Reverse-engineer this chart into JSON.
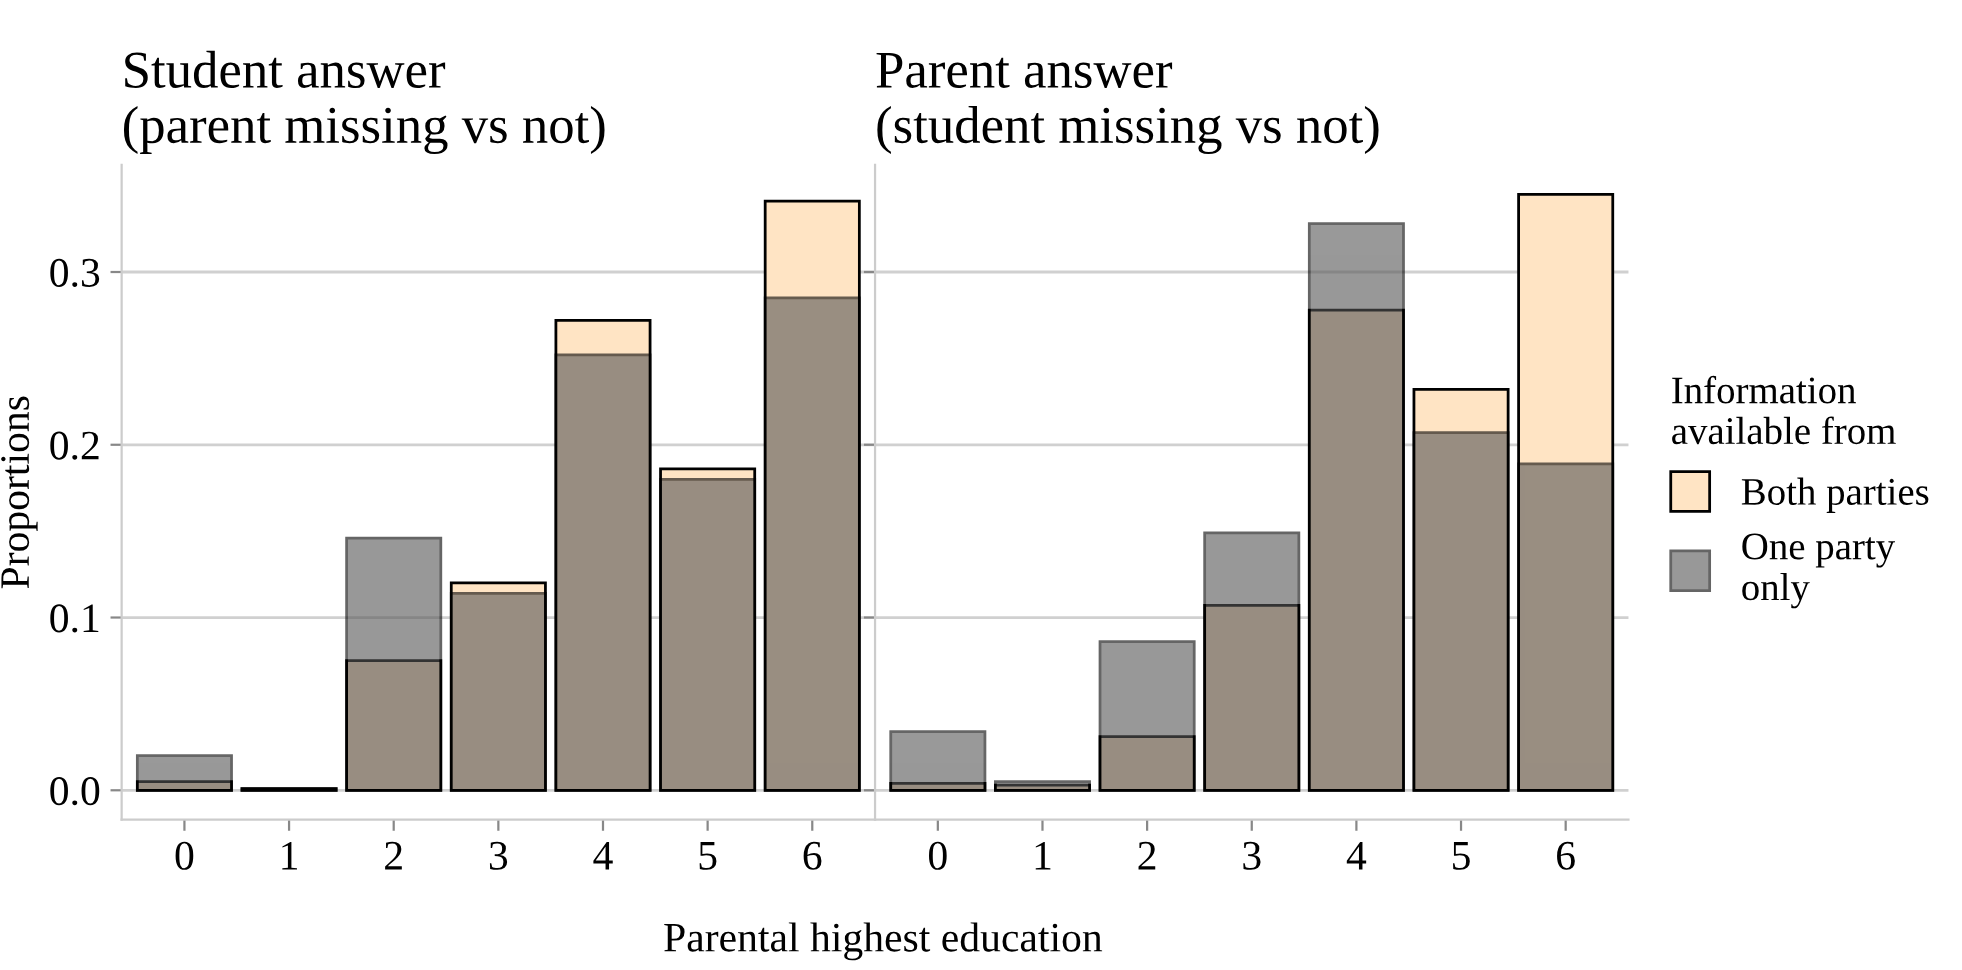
{
  "chart_data": [
    {
      "type": "bar",
      "title": "Student answer\n(parent missing vs not)",
      "xlabel": "Parental highest education",
      "ylabel": "Proportions",
      "categories": [
        "0",
        "1",
        "2",
        "3",
        "4",
        "5",
        "6"
      ],
      "series": [
        {
          "color": "#ffe4c4",
          "values": [
            0.005,
            0.001,
            0.075,
            0.12,
            0.272,
            0.186,
            0.341
          ]
        },
        {
          "color": "#555555",
          "values": [
            0.02,
            0.001,
            0.146,
            0.114,
            0.252,
            0.18,
            0.285
          ]
        }
      ],
      "ylim": [
        -0.017,
        0.362
      ],
      "yticks": [
        {
          "value": 0,
          "label": "0.0"
        },
        {
          "value": 0.1,
          "label": "0.1"
        },
        {
          "value": 0.2,
          "label": "0.2"
        },
        {
          "value": 0.3,
          "label": "0.3"
        }
      ],
      "grid": "y",
      "legend": false
    },
    {
      "type": "bar",
      "title": "Parent answer\n(student missing vs not)",
      "legend_title": "Information\navailable from",
      "categories": [
        "0",
        "1",
        "2",
        "3",
        "4",
        "5",
        "6"
      ],
      "series": [
        {
          "name": "Both parties",
          "color": "#ffe4c4",
          "values": [
            0.004,
            0.003,
            0.031,
            0.107,
            0.278,
            0.232,
            0.345
          ]
        },
        {
          "name": "One party\nonly",
          "color": "#555555",
          "values": [
            0.034,
            0.005,
            0.086,
            0.149,
            0.328,
            0.207,
            0.189
          ]
        }
      ],
      "ylim": [
        -0.017,
        0.362
      ],
      "yticks": [
        {
          "value": 0,
          "label": null
        },
        {
          "value": 0.1,
          "label": null
        },
        {
          "value": 0.2,
          "label": null
        },
        {
          "value": 0.3,
          "label": null
        }
      ],
      "grid": "y",
      "legend": "right",
      "tick_labels": "x"
    }
  ]
}
